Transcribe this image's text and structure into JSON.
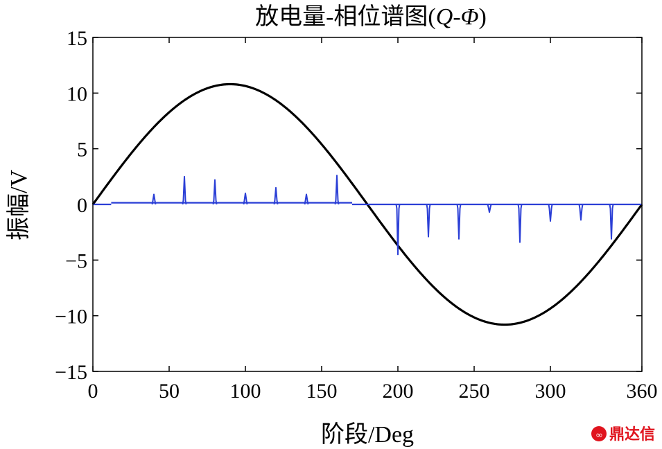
{
  "chart_data": {
    "type": "line",
    "title": "放电量-相位谱图(",
    "title_q": "Q",
    "title_sep": "-",
    "title_phi": "Φ",
    "title_close": ")",
    "xlabel": "阶段/Deg",
    "ylabel": "振幅/V",
    "xlim": [
      0,
      360
    ],
    "ylim": [
      -15,
      15
    ],
    "xticks": [
      "0",
      "50",
      "100",
      "150",
      "200",
      "250",
      "300",
      "360"
    ],
    "xtick_values": [
      0,
      50,
      100,
      150,
      200,
      250,
      300,
      360
    ],
    "yticks": [
      "15",
      "10",
      "5",
      "0",
      "−5",
      "−10",
      "−15"
    ],
    "ytick_values": [
      15,
      10,
      5,
      0,
      -5,
      -10,
      -15
    ],
    "grid": false,
    "series": [
      {
        "kind": "sine",
        "color": "#000000",
        "amplitude": 10.8,
        "period_deg": 360
      },
      {
        "kind": "pulses",
        "color": "#2b3fd6",
        "baseline_segments": [
          {
            "x": [
              0,
              12
            ],
            "y": 0.0
          },
          {
            "x": [
              12,
              170
            ],
            "y": 0.15
          },
          {
            "x": [
              170,
              360
            ],
            "y": 0.0
          }
        ],
        "pulses": [
          {
            "x": 40,
            "y": 0.9
          },
          {
            "x": 60,
            "y": 2.5
          },
          {
            "x": 80,
            "y": 2.2
          },
          {
            "x": 100,
            "y": 1.0
          },
          {
            "x": 120,
            "y": 1.5
          },
          {
            "x": 140,
            "y": 0.9
          },
          {
            "x": 160,
            "y": 2.6
          },
          {
            "x": 200,
            "y": -4.5
          },
          {
            "x": 220,
            "y": -2.9
          },
          {
            "x": 240,
            "y": -3.1
          },
          {
            "x": 260,
            "y": -0.7
          },
          {
            "x": 280,
            "y": -3.4
          },
          {
            "x": 300,
            "y": -1.5
          },
          {
            "x": 320,
            "y": -1.4
          },
          {
            "x": 340,
            "y": -3.1
          }
        ]
      }
    ]
  },
  "watermark": {
    "text": "鼎达信",
    "logo_color": "#e0141e"
  }
}
